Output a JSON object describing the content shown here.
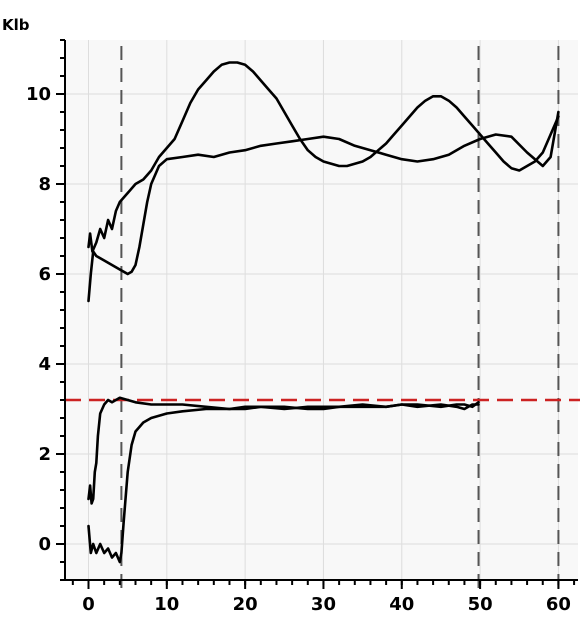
{
  "chart_data": {
    "type": "line",
    "title": "",
    "xlabel": "",
    "ylabel": "Klb",
    "xlim": [
      -3,
      62.5
    ],
    "ylim": [
      -0.8,
      11.2
    ],
    "x_ticks": [
      0,
      10,
      20,
      30,
      40,
      50,
      60
    ],
    "x_tick_labels": [
      "0",
      "10",
      "20",
      "30",
      "40",
      "50",
      "60"
    ],
    "y_ticks": [
      0,
      2,
      4,
      6,
      8,
      10
    ],
    "y_tick_labels": [
      "0",
      "2",
      "4",
      "6",
      "8",
      "10"
    ],
    "x_minor_step": 2,
    "y_minor_step": 0.4,
    "grid": true,
    "reference_lines": [
      {
        "orientation": "vertical",
        "value": 4.2,
        "color": "#555555",
        "style": "dashed"
      },
      {
        "orientation": "vertical",
        "value": 49.8,
        "color": "#555555",
        "style": "dashed"
      },
      {
        "orientation": "vertical",
        "value": 60,
        "color": "#555555",
        "style": "dashed"
      },
      {
        "orientation": "horizontal",
        "value": 3.2,
        "color": "#cc2222",
        "style": "dashed"
      }
    ],
    "series": [
      {
        "color": "#000000",
        "x": [
          0,
          0.2,
          0.5,
          1,
          1.5,
          2,
          2.5,
          3,
          3.5,
          4,
          5,
          6,
          7,
          8,
          9,
          10,
          11,
          12,
          13,
          14,
          15,
          16,
          17,
          18,
          19,
          20,
          21,
          22,
          23,
          24,
          25,
          26,
          27,
          28,
          29,
          30,
          31,
          32,
          33,
          34,
          35,
          36,
          37,
          38,
          39,
          40,
          41,
          42,
          43,
          44,
          45,
          46,
          47,
          48,
          49,
          50,
          51,
          52,
          53,
          54,
          55,
          56,
          57,
          58,
          59,
          60
        ],
        "y": [
          6.6,
          6.9,
          6.5,
          6.7,
          7.0,
          6.8,
          7.2,
          7.0,
          7.4,
          7.6,
          7.8,
          8.0,
          8.1,
          8.3,
          8.6,
          8.8,
          9.0,
          9.4,
          9.8,
          10.1,
          10.3,
          10.5,
          10.65,
          10.7,
          10.7,
          10.65,
          10.5,
          10.3,
          10.1,
          9.9,
          9.6,
          9.3,
          9.0,
          8.75,
          8.6,
          8.5,
          8.45,
          8.4,
          8.4,
          8.45,
          8.5,
          8.6,
          8.75,
          8.9,
          9.1,
          9.3,
          9.5,
          9.7,
          9.85,
          9.95,
          9.95,
          9.85,
          9.7,
          9.5,
          9.3,
          9.1,
          8.9,
          8.7,
          8.5,
          8.35,
          8.3,
          8.4,
          8.5,
          8.7,
          9.1,
          9.5
        ]
      },
      {
        "color": "#000000",
        "x": [
          0,
          0.3,
          0.6,
          1,
          2,
          3,
          4,
          5,
          5.5,
          6,
          6.5,
          7,
          7.5,
          8,
          9,
          10,
          12,
          14,
          16,
          18,
          20,
          22,
          24,
          26,
          28,
          30,
          32,
          34,
          36,
          38,
          40,
          42,
          44,
          46,
          48,
          50,
          52,
          54,
          56,
          58,
          59,
          60
        ],
        "y": [
          5.4,
          6.0,
          6.5,
          6.4,
          6.3,
          6.2,
          6.1,
          6.0,
          6.05,
          6.2,
          6.6,
          7.1,
          7.6,
          8.0,
          8.4,
          8.55,
          8.6,
          8.65,
          8.6,
          8.7,
          8.75,
          8.85,
          8.9,
          8.95,
          9.0,
          9.05,
          9.0,
          8.85,
          8.75,
          8.65,
          8.55,
          8.5,
          8.55,
          8.65,
          8.85,
          9.0,
          9.1,
          9.05,
          8.7,
          8.4,
          8.6,
          9.6
        ]
      },
      {
        "color": "#000000",
        "x": [
          0,
          0.2,
          0.4,
          0.6,
          0.8,
          1.0,
          1.2,
          1.5,
          2,
          2.5,
          3,
          4,
          5,
          6,
          8,
          10,
          12,
          15,
          18,
          20,
          22,
          25,
          28,
          30,
          32,
          35,
          38,
          40,
          42,
          45,
          47,
          48,
          49,
          49.8
        ],
        "y": [
          1.0,
          1.3,
          0.9,
          1.0,
          1.6,
          1.8,
          2.4,
          2.9,
          3.1,
          3.2,
          3.15,
          3.25,
          3.2,
          3.15,
          3.1,
          3.1,
          3.1,
          3.05,
          3.0,
          3.0,
          3.05,
          3.05,
          3.0,
          3.0,
          3.05,
          3.05,
          3.05,
          3.1,
          3.1,
          3.05,
          3.1,
          3.1,
          3.05,
          3.15
        ]
      },
      {
        "color": "#000000",
        "x": [
          0,
          0.3,
          0.6,
          1,
          1.5,
          2,
          2.5,
          3,
          3.5,
          4,
          4.2,
          4.5,
          5,
          5.5,
          6,
          7,
          8,
          9,
          10,
          12,
          15,
          18,
          20,
          22,
          25,
          28,
          30,
          32,
          35,
          38,
          40,
          42,
          45,
          47,
          48,
          49,
          49.8
        ],
        "y": [
          0.4,
          -0.2,
          0.0,
          -0.2,
          0.0,
          -0.2,
          -0.1,
          -0.3,
          -0.2,
          -0.4,
          -0.2,
          0.5,
          1.6,
          2.2,
          2.5,
          2.7,
          2.8,
          2.85,
          2.9,
          2.95,
          3.0,
          3.0,
          3.05,
          3.05,
          3.0,
          3.05,
          3.05,
          3.05,
          3.1,
          3.05,
          3.1,
          3.05,
          3.1,
          3.05,
          3.0,
          3.1,
          3.1
        ]
      }
    ]
  }
}
